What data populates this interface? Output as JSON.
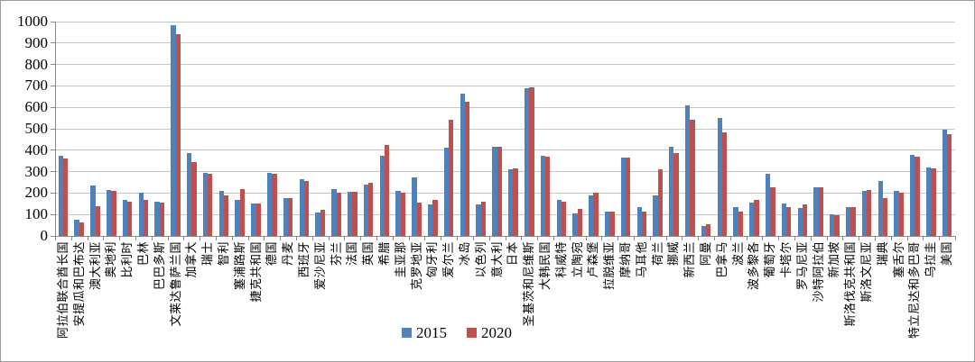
{
  "chart_data": {
    "type": "bar",
    "title": "",
    "xlabel": "",
    "ylabel": "",
    "ylim": [
      0,
      1000
    ],
    "ytick_step": 100,
    "yticks": [
      "0",
      "100",
      "200",
      "300",
      "400",
      "500",
      "600",
      "700",
      "800",
      "900",
      "1000"
    ],
    "grid": true,
    "legend_position": "bottom-center",
    "categories": [
      "阿拉伯联合酋长国",
      "安提瓜和巴布达",
      "澳大利亚",
      "奥地利",
      "比利时",
      "巴林",
      "巴巴多斯",
      "文莱达鲁萨兰国",
      "加拿大",
      "瑞士",
      "智利",
      "塞浦路斯",
      "捷克共和国",
      "德国",
      "丹麦",
      "西班牙",
      "爱沙尼亚",
      "芬兰",
      "法国",
      "英国",
      "希腊",
      "圭亚那",
      "克罗地亚",
      "匈牙利",
      "爱尔兰",
      "冰岛",
      "以色列",
      "意大利",
      "日本",
      "圣基茨和尼维斯",
      "大韩民国",
      "科威特",
      "立陶宛",
      "卢森堡",
      "拉脱维亚",
      "摩纳哥",
      "马耳他",
      "荷兰",
      "挪威",
      "新西兰",
      "阿曼",
      "巴拿马",
      "波兰",
      "波多黎各",
      "葡萄牙",
      "卡塔尔",
      "罗马尼亚",
      "沙特阿拉伯",
      "新加坡",
      "斯洛伐克共和国",
      "斯洛文尼亚",
      "瑞典",
      "塞舌尔",
      "特立尼达和多巴哥",
      "乌拉圭",
      "美国"
    ],
    "series": [
      {
        "name": "2015",
        "color": "#4f81bd",
        "values": [
          375,
          75,
          235,
          215,
          170,
          200,
          160,
          985,
          385,
          295,
          210,
          170,
          150,
          295,
          175,
          265,
          110,
          220,
          205,
          240,
          375,
          210,
          275,
          145,
          410,
          665,
          145,
          415,
          310,
          690,
          372,
          170,
          105,
          190,
          115,
          365,
          135,
          190,
          415,
          610,
          45,
          550,
          135,
          155,
          290,
          150,
          130,
          225,
          100,
          135,
          210,
          255,
          210,
          380,
          320,
          495
        ]
      },
      {
        "name": "2020",
        "color": "#c0504d",
        "values": [
          360,
          65,
          140,
          210,
          160,
          170,
          155,
          940,
          345,
          290,
          190,
          220,
          150,
          290,
          175,
          255,
          120,
          200,
          205,
          250,
          425,
          200,
          155,
          170,
          540,
          625,
          160,
          415,
          315,
          695,
          370,
          160,
          125,
          200,
          115,
          365,
          115,
          310,
          385,
          540,
          55,
          485,
          115,
          170,
          225,
          135,
          145,
          225,
          95,
          135,
          215,
          175,
          200,
          370,
          315,
          475
        ]
      }
    ]
  },
  "colors": {
    "gridline": "#c6c6c6",
    "axis": "#898989",
    "background": "#ffffff",
    "border": "#9b9b9b"
  }
}
